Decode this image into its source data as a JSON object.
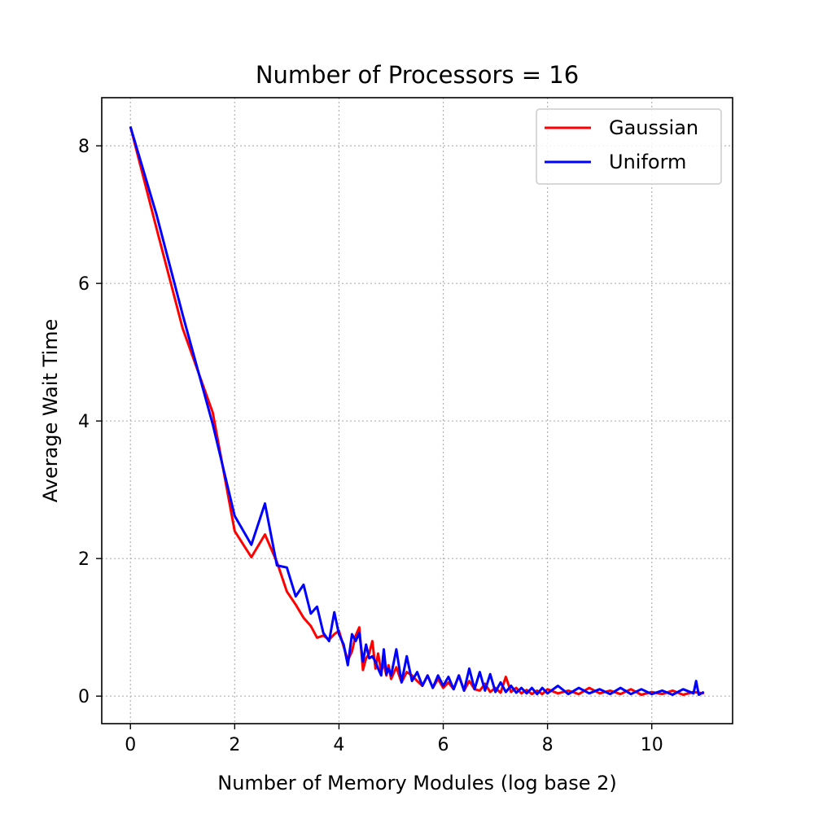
{
  "chart_data": {
    "type": "line",
    "title": "Number of Processors = 16",
    "xlabel": "Number of Memory Modules (log base 2)",
    "ylabel": "Average Wait Time",
    "xlim": [
      -0.55,
      11.55
    ],
    "ylim": [
      -0.4,
      8.7
    ],
    "xticks": [
      0,
      2,
      4,
      6,
      8,
      10
    ],
    "yticks": [
      0,
      2,
      4,
      6,
      8
    ],
    "grid": true,
    "legend_position": "top-right",
    "series": [
      {
        "name": "Gaussian",
        "color": "#ff0000",
        "points": [
          [
            0.0,
            8.28
          ],
          [
            0.5,
            6.8
          ],
          [
            1.0,
            5.35
          ],
          [
            1.58,
            4.12
          ],
          [
            2.0,
            2.4
          ],
          [
            2.32,
            2.02
          ],
          [
            2.58,
            2.35
          ],
          [
            2.81,
            1.95
          ],
          [
            3.0,
            1.52
          ],
          [
            3.17,
            1.33
          ],
          [
            3.32,
            1.14
          ],
          [
            3.46,
            1.02
          ],
          [
            3.58,
            0.85
          ],
          [
            3.7,
            0.88
          ],
          [
            3.81,
            0.82
          ],
          [
            3.91,
            0.9
          ],
          [
            4.0,
            0.95
          ],
          [
            4.09,
            0.72
          ],
          [
            4.17,
            0.52
          ],
          [
            4.25,
            0.65
          ],
          [
            4.32,
            0.88
          ],
          [
            4.39,
            1.0
          ],
          [
            4.46,
            0.38
          ],
          [
            4.52,
            0.55
          ],
          [
            4.58,
            0.62
          ],
          [
            4.64,
            0.8
          ],
          [
            4.7,
            0.4
          ],
          [
            4.75,
            0.62
          ],
          [
            4.81,
            0.35
          ],
          [
            4.86,
            0.48
          ],
          [
            4.91,
            0.3
          ],
          [
            4.95,
            0.45
          ],
          [
            5.0,
            0.25
          ],
          [
            5.1,
            0.42
          ],
          [
            5.2,
            0.2
          ],
          [
            5.3,
            0.35
          ],
          [
            5.4,
            0.3
          ],
          [
            5.5,
            0.22
          ],
          [
            5.6,
            0.15
          ],
          [
            5.7,
            0.3
          ],
          [
            5.8,
            0.12
          ],
          [
            5.9,
            0.25
          ],
          [
            6.0,
            0.12
          ],
          [
            6.1,
            0.2
          ],
          [
            6.2,
            0.1
          ],
          [
            6.3,
            0.3
          ],
          [
            6.4,
            0.08
          ],
          [
            6.5,
            0.22
          ],
          [
            6.6,
            0.1
          ],
          [
            6.7,
            0.08
          ],
          [
            6.8,
            0.18
          ],
          [
            6.9,
            0.06
          ],
          [
            7.0,
            0.12
          ],
          [
            7.1,
            0.05
          ],
          [
            7.2,
            0.28
          ],
          [
            7.3,
            0.06
          ],
          [
            7.4,
            0.12
          ],
          [
            7.5,
            0.04
          ],
          [
            7.6,
            0.09
          ],
          [
            7.7,
            0.03
          ],
          [
            7.8,
            0.08
          ],
          [
            7.9,
            0.03
          ],
          [
            8.0,
            0.1
          ],
          [
            8.2,
            0.04
          ],
          [
            8.4,
            0.08
          ],
          [
            8.6,
            0.03
          ],
          [
            8.8,
            0.12
          ],
          [
            9.0,
            0.04
          ],
          [
            9.2,
            0.08
          ],
          [
            9.4,
            0.03
          ],
          [
            9.6,
            0.1
          ],
          [
            9.8,
            0.02
          ],
          [
            10.0,
            0.06
          ],
          [
            10.2,
            0.03
          ],
          [
            10.4,
            0.08
          ],
          [
            10.6,
            0.02
          ],
          [
            10.8,
            0.06
          ],
          [
            11.0,
            0.04
          ]
        ]
      },
      {
        "name": "Uniform",
        "color": "#0000ff",
        "points": [
          [
            0.0,
            8.28
          ],
          [
            0.5,
            7.0
          ],
          [
            1.0,
            5.55
          ],
          [
            1.58,
            3.95
          ],
          [
            2.0,
            2.62
          ],
          [
            2.32,
            2.2
          ],
          [
            2.58,
            2.8
          ],
          [
            2.81,
            1.9
          ],
          [
            3.0,
            1.87
          ],
          [
            3.17,
            1.45
          ],
          [
            3.32,
            1.62
          ],
          [
            3.46,
            1.2
          ],
          [
            3.58,
            1.3
          ],
          [
            3.7,
            0.92
          ],
          [
            3.81,
            0.8
          ],
          [
            3.91,
            1.22
          ],
          [
            4.0,
            0.9
          ],
          [
            4.09,
            0.75
          ],
          [
            4.17,
            0.45
          ],
          [
            4.25,
            0.9
          ],
          [
            4.32,
            0.8
          ],
          [
            4.39,
            0.92
          ],
          [
            4.46,
            0.5
          ],
          [
            4.52,
            0.75
          ],
          [
            4.58,
            0.55
          ],
          [
            4.64,
            0.58
          ],
          [
            4.7,
            0.5
          ],
          [
            4.75,
            0.4
          ],
          [
            4.81,
            0.3
          ],
          [
            4.86,
            0.68
          ],
          [
            4.91,
            0.32
          ],
          [
            4.95,
            0.4
          ],
          [
            5.0,
            0.3
          ],
          [
            5.1,
            0.68
          ],
          [
            5.2,
            0.2
          ],
          [
            5.3,
            0.58
          ],
          [
            5.4,
            0.22
          ],
          [
            5.5,
            0.35
          ],
          [
            5.6,
            0.15
          ],
          [
            5.7,
            0.3
          ],
          [
            5.8,
            0.12
          ],
          [
            5.9,
            0.3
          ],
          [
            6.0,
            0.15
          ],
          [
            6.1,
            0.28
          ],
          [
            6.2,
            0.1
          ],
          [
            6.3,
            0.3
          ],
          [
            6.4,
            0.08
          ],
          [
            6.5,
            0.4
          ],
          [
            6.6,
            0.1
          ],
          [
            6.7,
            0.35
          ],
          [
            6.8,
            0.08
          ],
          [
            6.9,
            0.32
          ],
          [
            7.0,
            0.06
          ],
          [
            7.1,
            0.2
          ],
          [
            7.2,
            0.06
          ],
          [
            7.3,
            0.15
          ],
          [
            7.4,
            0.05
          ],
          [
            7.5,
            0.12
          ],
          [
            7.6,
            0.04
          ],
          [
            7.7,
            0.12
          ],
          [
            7.8,
            0.03
          ],
          [
            7.9,
            0.12
          ],
          [
            8.0,
            0.04
          ],
          [
            8.2,
            0.15
          ],
          [
            8.4,
            0.03
          ],
          [
            8.6,
            0.12
          ],
          [
            8.8,
            0.04
          ],
          [
            9.0,
            0.1
          ],
          [
            9.2,
            0.03
          ],
          [
            9.4,
            0.12
          ],
          [
            9.6,
            0.03
          ],
          [
            9.8,
            0.1
          ],
          [
            10.0,
            0.03
          ],
          [
            10.2,
            0.08
          ],
          [
            10.4,
            0.02
          ],
          [
            10.6,
            0.1
          ],
          [
            10.8,
            0.04
          ],
          [
            10.85,
            0.22
          ],
          [
            10.9,
            0.02
          ],
          [
            11.0,
            0.06
          ]
        ]
      }
    ]
  }
}
